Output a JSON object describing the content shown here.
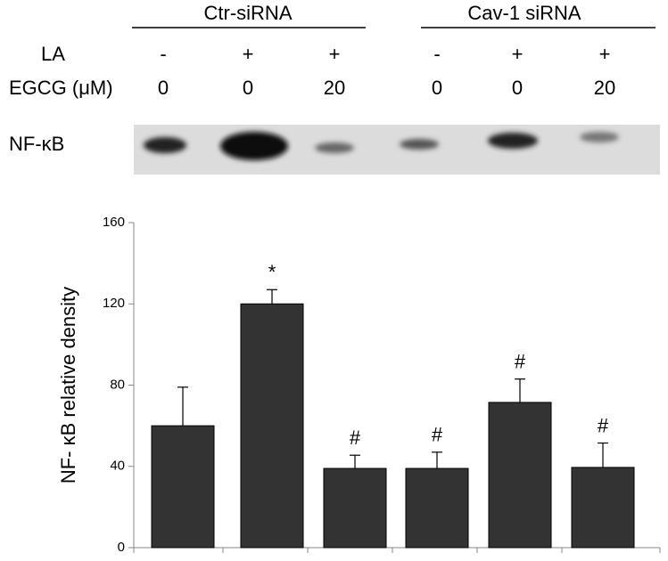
{
  "header": {
    "groups": [
      "Ctr-siRNA",
      "Cav-1 siRNA"
    ],
    "rows": [
      {
        "label": "LA",
        "cells": [
          "-",
          "+",
          "+",
          "-",
          "+",
          "+"
        ]
      },
      {
        "label": "EGCG (μM)",
        "cells": [
          "0",
          "0",
          "20",
          "0",
          "0",
          "20"
        ]
      }
    ],
    "blot_label": "NF-κB"
  },
  "chart_data": {
    "type": "bar",
    "y_label": "NF- κB relative density",
    "values": [
      60,
      120,
      39,
      39,
      71.5,
      39.5
    ],
    "errors": [
      19,
      7,
      6.5,
      8,
      11.5,
      12
    ],
    "annotations": [
      null,
      "*",
      "#",
      "#",
      "#",
      "#"
    ],
    "color": "#333333",
    "ylim": [
      0,
      160
    ],
    "yticks": [
      0,
      40,
      80,
      120,
      160
    ]
  }
}
